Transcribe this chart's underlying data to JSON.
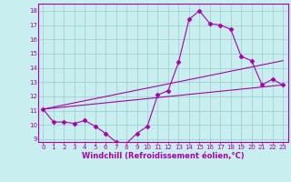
{
  "xlabel": "Windchill (Refroidissement éolien,°C)",
  "ylabel": "",
  "bg_color": "#c8eef0",
  "line_color": "#aa00aa",
  "grid_color": "#99cccc",
  "xlim": [
    -0.5,
    23.5
  ],
  "ylim": [
    8.8,
    18.5
  ],
  "yticks": [
    9,
    10,
    11,
    12,
    13,
    14,
    15,
    16,
    17,
    18
  ],
  "xticks": [
    0,
    1,
    2,
    3,
    4,
    5,
    6,
    7,
    8,
    9,
    10,
    11,
    12,
    13,
    14,
    15,
    16,
    17,
    18,
    19,
    20,
    21,
    22,
    23
  ],
  "series1_x": [
    0,
    1,
    2,
    3,
    4,
    5,
    6,
    7,
    8,
    9,
    10,
    11,
    12,
    13,
    14,
    15,
    16,
    17,
    18,
    19,
    20,
    21,
    22,
    23
  ],
  "series1_y": [
    11.1,
    10.2,
    10.2,
    10.1,
    10.3,
    9.9,
    9.4,
    8.8,
    8.7,
    9.4,
    9.9,
    12.1,
    12.4,
    14.4,
    17.4,
    18.0,
    17.1,
    17.0,
    16.7,
    14.8,
    14.5,
    12.8,
    13.2,
    12.8
  ],
  "series2_x": [
    0,
    23
  ],
  "series2_y": [
    11.1,
    12.8
  ],
  "series3_x": [
    0,
    23
  ],
  "series3_y": [
    11.1,
    14.5
  ],
  "marker": "D",
  "marker_size": 2.5,
  "linewidth": 0.8,
  "tick_fontsize": 5,
  "xlabel_fontsize": 6
}
